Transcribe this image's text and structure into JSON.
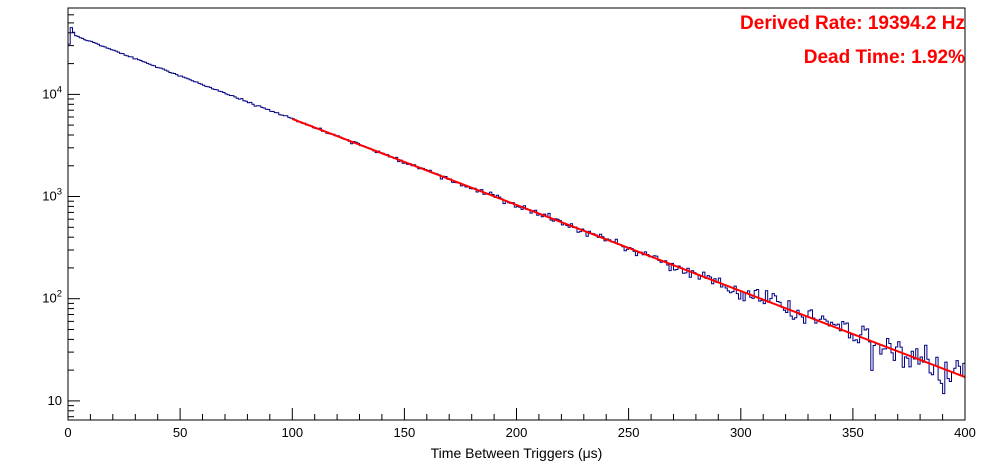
{
  "chart_data": {
    "type": "histogram",
    "title": "",
    "xlabel": "Time Between Triggers (μs)",
    "ylabel": "",
    "y_scale": "log",
    "xlim": [
      0,
      400
    ],
    "ylim": [
      6.5,
      70000
    ],
    "x_major_ticks": [
      0,
      50,
      100,
      150,
      200,
      250,
      300,
      350,
      400
    ],
    "x_minor_step": 10,
    "y_major_ticks": [
      10,
      100,
      1000,
      10000
    ],
    "grid": false,
    "frame_color": "#000000",
    "histogram": {
      "color": "#000080",
      "line_width": 1,
      "n_bins": 400,
      "bin_width_us": 1,
      "model": "exponential_decay",
      "N0": 40000,
      "tau_us": 51.56,
      "noise": "poisson",
      "noise_seed": 20394,
      "bin_overrides": {
        "0": 31000,
        "1": 45000,
        "2": 40500
      }
    },
    "fit": {
      "color": "#ff0000",
      "line_width": 2,
      "model": "exponential_decay",
      "N0": 40000,
      "tau_us": 51.56,
      "x_start": 100,
      "x_end": 400
    },
    "sampled_values": {
      "x": [
        0,
        25,
        50,
        75,
        100,
        125,
        150,
        175,
        200,
        225,
        250,
        275,
        300,
        325,
        350,
        375,
        400
      ],
      "y": [
        40000,
        24600,
        15160,
        9340,
        5750,
        3540,
        2180,
        1340,
        826,
        509,
        313,
        193,
        119,
        73,
        45,
        28,
        17
      ]
    },
    "annotations": [
      {
        "id": "derived-rate",
        "label": "Derived Rate: 19394.2 Hz",
        "color": "#ff0000"
      },
      {
        "id": "dead-time",
        "label": "Dead Time: 1.92%",
        "color": "#ff0000"
      }
    ]
  }
}
